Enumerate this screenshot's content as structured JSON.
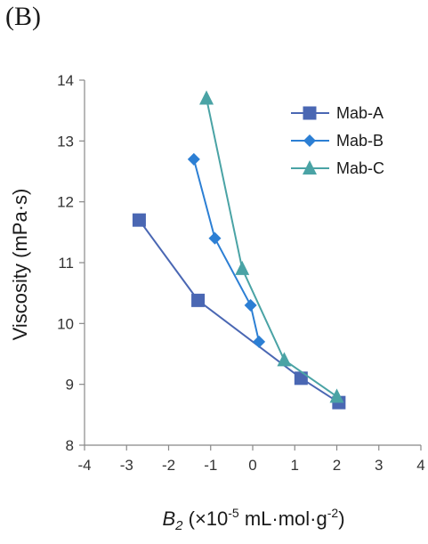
{
  "panel_label": "(B)",
  "chart_data": {
    "type": "line",
    "xlabel_italic": "B",
    "xlabel_sub": "2",
    "xlabel_rest": " (×10",
    "xlabel_sup1": "-5",
    "xlabel_mid": " mL·mol·g",
    "xlabel_sup2": "-2",
    "xlabel_end": ")",
    "ylabel": "Viscosity (mPa·s)",
    "xlim": [
      -4,
      4
    ],
    "ylim": [
      8,
      14
    ],
    "xticks": [
      "-4",
      "-3",
      "-2",
      "-1",
      "0",
      "1",
      "2",
      "3",
      "4"
    ],
    "yticks": [
      "8",
      "9",
      "10",
      "11",
      "12",
      "13",
      "14"
    ],
    "grid": false,
    "legend_position": "top-right",
    "series": [
      {
        "name": "Mab-A",
        "marker": "square",
        "color": "#4a67b3",
        "points": [
          [
            -2.7,
            11.7
          ],
          [
            -1.3,
            10.38
          ],
          [
            1.15,
            9.1
          ],
          [
            2.05,
            8.7
          ]
        ]
      },
      {
        "name": "Mab-B",
        "marker": "diamond",
        "color": "#2c7fd4",
        "points": [
          [
            -1.4,
            12.7
          ],
          [
            -0.9,
            11.4
          ],
          [
            -0.05,
            10.3
          ],
          [
            0.15,
            9.7
          ]
        ]
      },
      {
        "name": "Mab-C",
        "marker": "triangle",
        "color": "#4aa3a5",
        "points": [
          [
            -1.1,
            13.7
          ],
          [
            -0.25,
            10.9
          ],
          [
            0.75,
            9.4
          ],
          [
            2.0,
            8.8
          ]
        ]
      }
    ]
  }
}
